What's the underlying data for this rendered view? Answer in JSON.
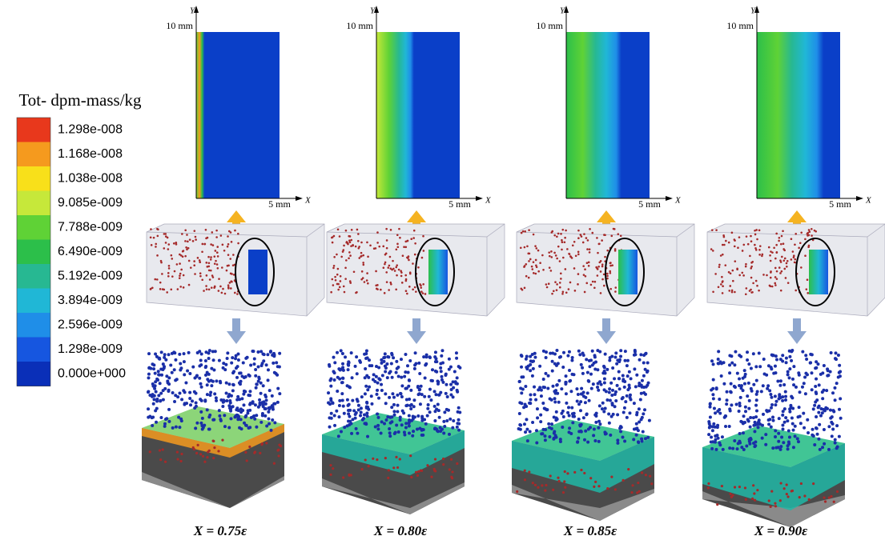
{
  "legend": {
    "title": "Tot- dpm-mass/kg",
    "entries": [
      {
        "label": "1.298e-008",
        "color": "#e8381c"
      },
      {
        "label": "1.168e-008",
        "color": "#f59a1e"
      },
      {
        "label": "1.038e-008",
        "color": "#f8e01a"
      },
      {
        "label": "9.085e-009",
        "color": "#c6e83a"
      },
      {
        "label": "7.788e-009",
        "color": "#5fd236"
      },
      {
        "label": "6.490e-009",
        "color": "#2cbf4a"
      },
      {
        "label": "5.192e-009",
        "color": "#27b892"
      },
      {
        "label": "3.894e-009",
        "color": "#20b7d6"
      },
      {
        "label": "2.596e-009",
        "color": "#1f8ee8"
      },
      {
        "label": "1.298e-009",
        "color": "#1656e0"
      },
      {
        "label": "0.000e+000",
        "color": "#0a2fb8"
      }
    ]
  },
  "panels": [
    {
      "y_axis": "Y",
      "x_axis": "X",
      "y_extent": "10 mm",
      "x_extent": "5 mm",
      "caption": "X = 0.75ε"
    },
    {
      "y_axis": "Y",
      "x_axis": "X",
      "y_extent": "10 mm",
      "x_extent": "5 mm",
      "caption": "X = 0.80ε"
    },
    {
      "y_axis": "Y",
      "x_axis": "X",
      "y_extent": "10 mm",
      "x_extent": "5 mm",
      "caption": "X = 0.85ε"
    },
    {
      "y_axis": "Y",
      "x_axis": "X",
      "y_extent": "10 mm",
      "x_extent": "5 mm",
      "caption": "X = 0.90ε"
    }
  ]
}
